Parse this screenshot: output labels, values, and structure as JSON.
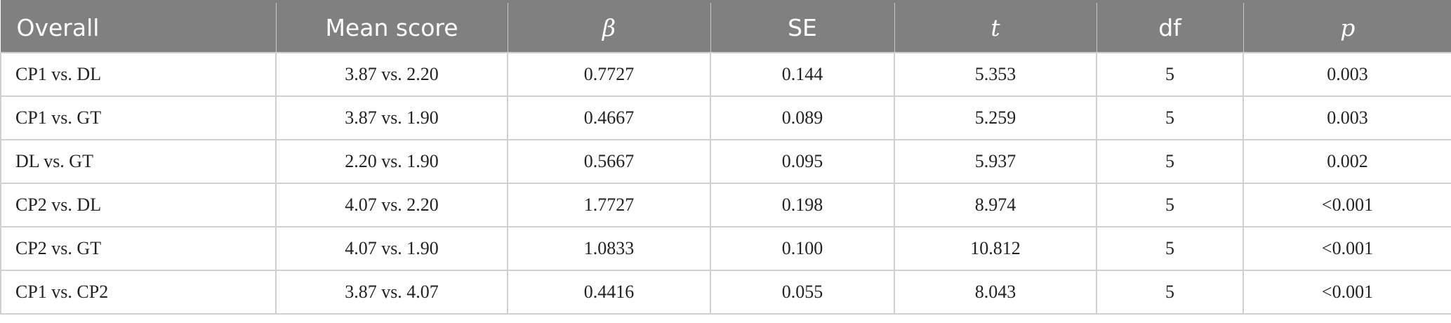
{
  "table": {
    "headers": [
      "Overall",
      "Mean score",
      "β",
      "SE",
      "t",
      "df",
      "p"
    ],
    "rows": [
      [
        "CP1 vs. DL",
        "3.87 vs. 2.20",
        "0.7727",
        "0.144",
        "5.353",
        "5",
        "0.003"
      ],
      [
        "CP1 vs. GT",
        "3.87 vs. 1.90",
        "0.4667",
        "0.089",
        "5.259",
        "5",
        "0.003"
      ],
      [
        "DL vs. GT",
        "2.20 vs. 1.90",
        "0.5667",
        "0.095",
        "5.937",
        "5",
        "0.002"
      ],
      [
        "CP2 vs. DL",
        "4.07 vs. 2.20",
        "1.7727",
        "0.198",
        "8.974",
        "5",
        "<0.001"
      ],
      [
        "CP2 vs. GT",
        "4.07 vs. 1.90",
        "1.0833",
        "0.100",
        "10.812",
        "5",
        "<0.001"
      ],
      [
        "CP1 vs. CP2",
        "3.87 vs. 4.07",
        "0.4416",
        "0.055",
        "8.043",
        "5",
        "<0.001"
      ]
    ]
  },
  "colors": {
    "header_bg": "#808080",
    "header_text": "#ffffff",
    "grid": "#cfcfcf"
  }
}
